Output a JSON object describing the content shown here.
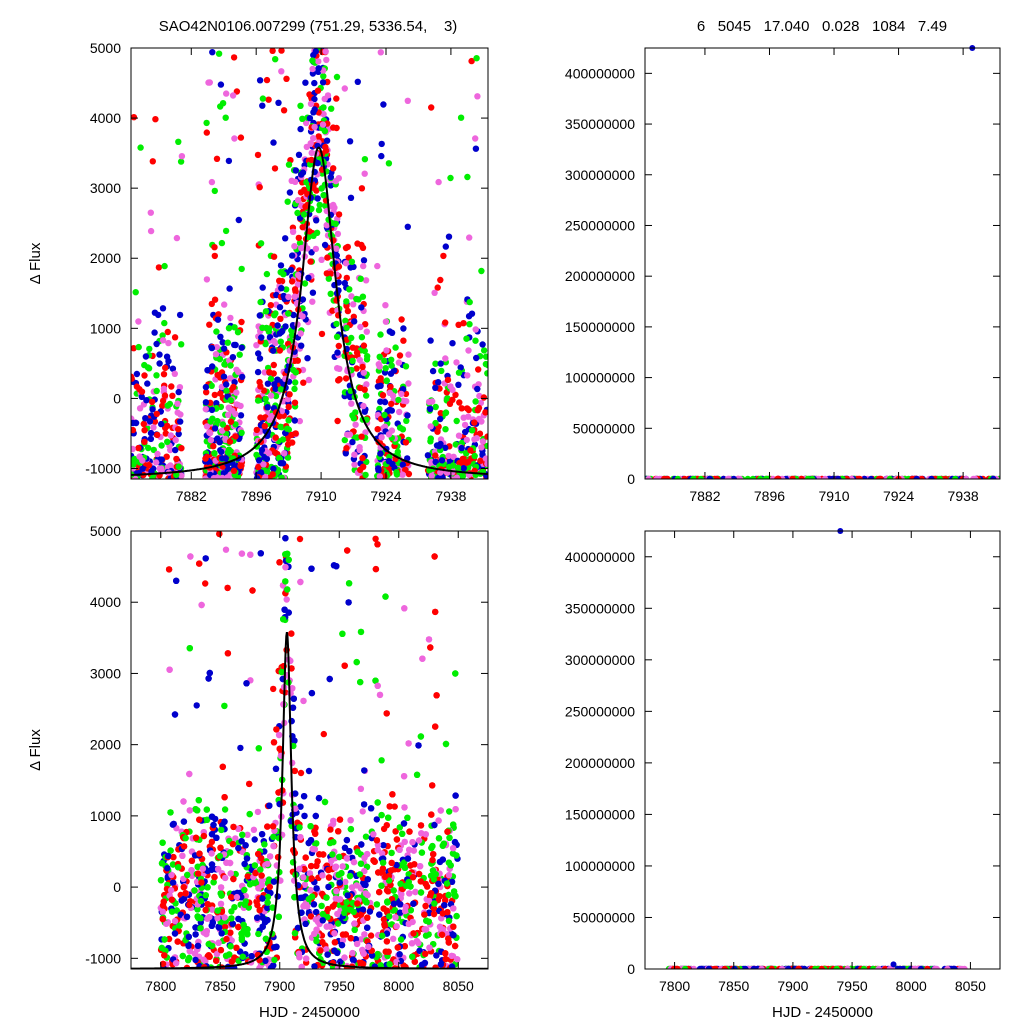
{
  "header": {
    "left_title": "SAO42N0106.007299 (751.29, 5336.54,    3)",
    "right_title": "6   5045   17.040   0.028   1084   7.49"
  },
  "colors": {
    "red": "#ff0000",
    "green": "#00ee00",
    "blue": "#0000cc",
    "magenta": "#ee66dd",
    "curve": "#000000"
  },
  "chart_data": [
    {
      "type": "scatter",
      "panel": "top-left",
      "title": "SAO42N0106.007299 (751.29, 5336.54,    3)",
      "xlabel": "",
      "ylabel": "Δ Flux",
      "xlim": [
        7869,
        7946
      ],
      "ylim": [
        -1150,
        5000
      ],
      "xticks": [
        7882,
        7896,
        7910,
        7924,
        7938
      ],
      "yticks": [
        -1000,
        0,
        1000,
        2000,
        3000,
        4000,
        5000
      ],
      "series": [
        {
          "color": "red",
          "note": "scatter points"
        },
        {
          "color": "green",
          "note": "scatter points"
        },
        {
          "color": "blue",
          "note": "scatter points"
        },
        {
          "color": "magenta",
          "note": "scatter points"
        }
      ],
      "model_curve": {
        "shape": "lorentzian-like peak",
        "peak_x": 7909.5,
        "peak_y": 3580,
        "baseline": -1150,
        "halfwidth": 4.5
      }
    },
    {
      "type": "scatter",
      "panel": "top-right",
      "title": "6   5045   17.040   0.028   1084   7.49",
      "xlabel": "",
      "ylabel": "",
      "xlim": [
        7869,
        7946
      ],
      "ylim": [
        0,
        425000000
      ],
      "xticks": [
        7882,
        7896,
        7910,
        7924,
        7938
      ],
      "yticks": [
        0,
        50000000,
        100000000,
        150000000,
        200000000,
        250000000,
        300000000,
        350000000,
        400000000
      ],
      "outliers": [
        {
          "x": 7940,
          "y": 425000000,
          "color": "blue"
        }
      ]
    },
    {
      "type": "scatter",
      "panel": "bottom-left",
      "xlabel": "HJD - 2450000",
      "ylabel": "Δ Flux",
      "xlim": [
        7775,
        8075
      ],
      "ylim": [
        -1150,
        5000
      ],
      "xticks": [
        7800,
        7850,
        7900,
        7950,
        8000,
        8050
      ],
      "yticks": [
        -1000,
        0,
        1000,
        2000,
        3000,
        4000,
        5000
      ],
      "model_curve": {
        "shape": "lorentzian-like peak",
        "peak_x": 7906,
        "peak_y": 3580,
        "baseline": -1150,
        "halfwidth": 4.5
      }
    },
    {
      "type": "scatter",
      "panel": "bottom-right",
      "xlabel": "HJD - 2450000",
      "ylabel": "",
      "xlim": [
        7775,
        8075
      ],
      "ylim": [
        0,
        425000000
      ],
      "xticks": [
        7800,
        7850,
        7900,
        7950,
        8000,
        8050
      ],
      "yticks": [
        0,
        50000000,
        100000000,
        150000000,
        200000000,
        250000000,
        300000000,
        350000000,
        400000000
      ],
      "outliers": [
        {
          "x": 7940,
          "y": 425000000,
          "color": "blue"
        },
        {
          "x": 7985,
          "y": 4500000,
          "color": "blue"
        }
      ]
    }
  ]
}
